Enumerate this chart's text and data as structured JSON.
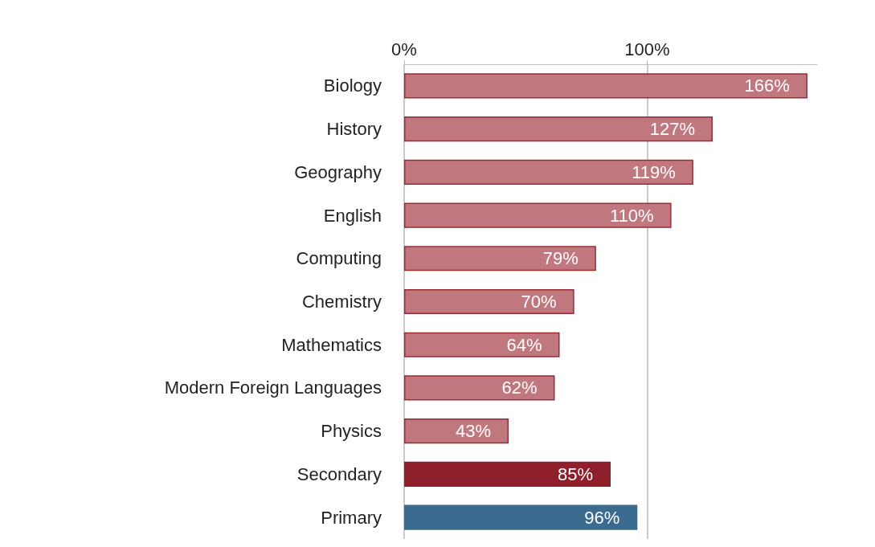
{
  "chart_data": {
    "type": "bar",
    "orientation": "horizontal",
    "categories": [
      "Biology",
      "History",
      "Geography",
      "English",
      "Computing",
      "Chemistry",
      "Mathematics",
      "Modern Foreign Languages",
      "Physics",
      "Secondary",
      "Primary"
    ],
    "values": [
      166,
      127,
      119,
      110,
      79,
      70,
      64,
      62,
      43,
      85,
      96
    ],
    "value_labels": [
      "166%",
      "127%",
      "119%",
      "110%",
      "79%",
      "70%",
      "64%",
      "62%",
      "43%",
      "85%",
      "96%"
    ],
    "colors": [
      "#c0787e",
      "#c0787e",
      "#c0787e",
      "#c0787e",
      "#c0787e",
      "#c0787e",
      "#c0787e",
      "#c0787e",
      "#c0787e",
      "#8e1f2b",
      "#3b6b8f"
    ],
    "xlim": [
      0,
      170
    ],
    "xticks": [
      {
        "value": 0,
        "label": "0%"
      },
      {
        "value": 100,
        "label": "100%"
      }
    ],
    "grid": "x"
  }
}
